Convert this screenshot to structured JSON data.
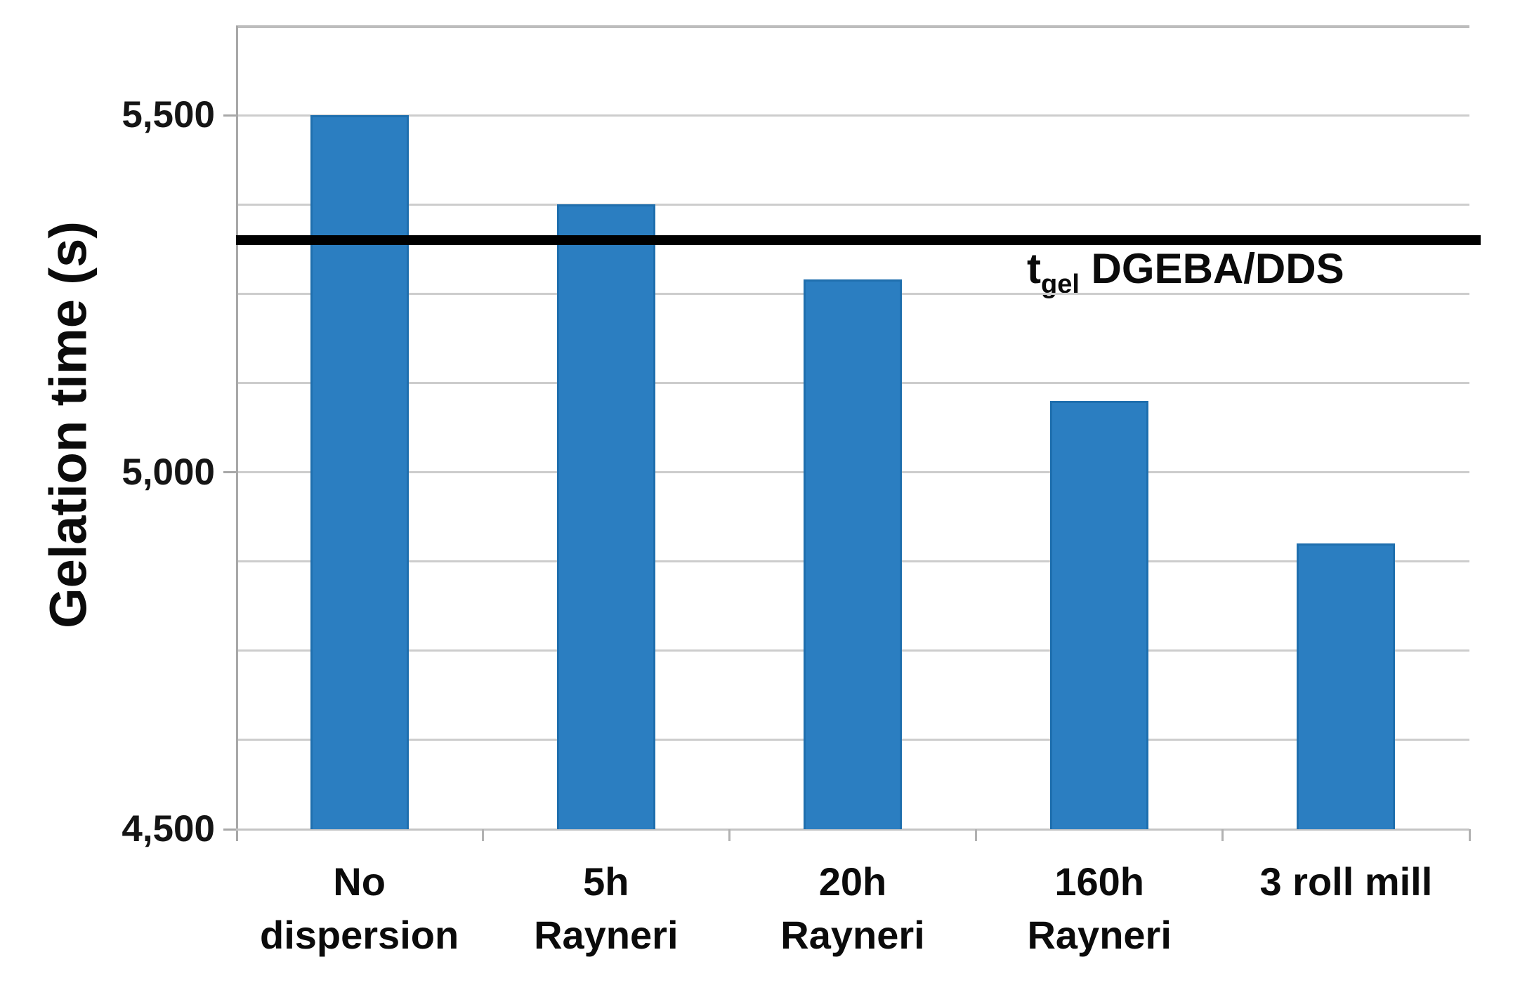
{
  "chart_data": {
    "type": "bar",
    "title": "",
    "xlabel": "",
    "ylabel": "Gelation time (s)",
    "categories": [
      "No dispersion",
      "5h Rayneri",
      "20h Rayneri",
      "160h Rayneri",
      "3 roll mill"
    ],
    "category_lines": [
      [
        "No dispersion"
      ],
      [
        "5h",
        "Rayneri"
      ],
      [
        "20h",
        "Rayneri"
      ],
      [
        "160h",
        "Rayneri"
      ],
      [
        "3 roll mill"
      ]
    ],
    "values": [
      5500,
      5375,
      5270,
      5100,
      4900
    ],
    "unit": "s",
    "ylim": [
      4500,
      5625
    ],
    "gridline_step": 125,
    "grid": "horizontal",
    "ytick_values": [
      5500,
      5000,
      4500
    ],
    "ytick_labels": [
      "5,500",
      "5,000",
      "4,500"
    ],
    "legend_position": "none",
    "bar_color": "#2b7ec1",
    "bar_edge_color": "#1f6fae",
    "reference_line": {
      "value": 5325,
      "color": "#000000",
      "label": "tgel DGEBA/DDS",
      "label_prefix": "t",
      "label_sub": "gel",
      "label_suffix": " DGEBA/DDS"
    }
  }
}
